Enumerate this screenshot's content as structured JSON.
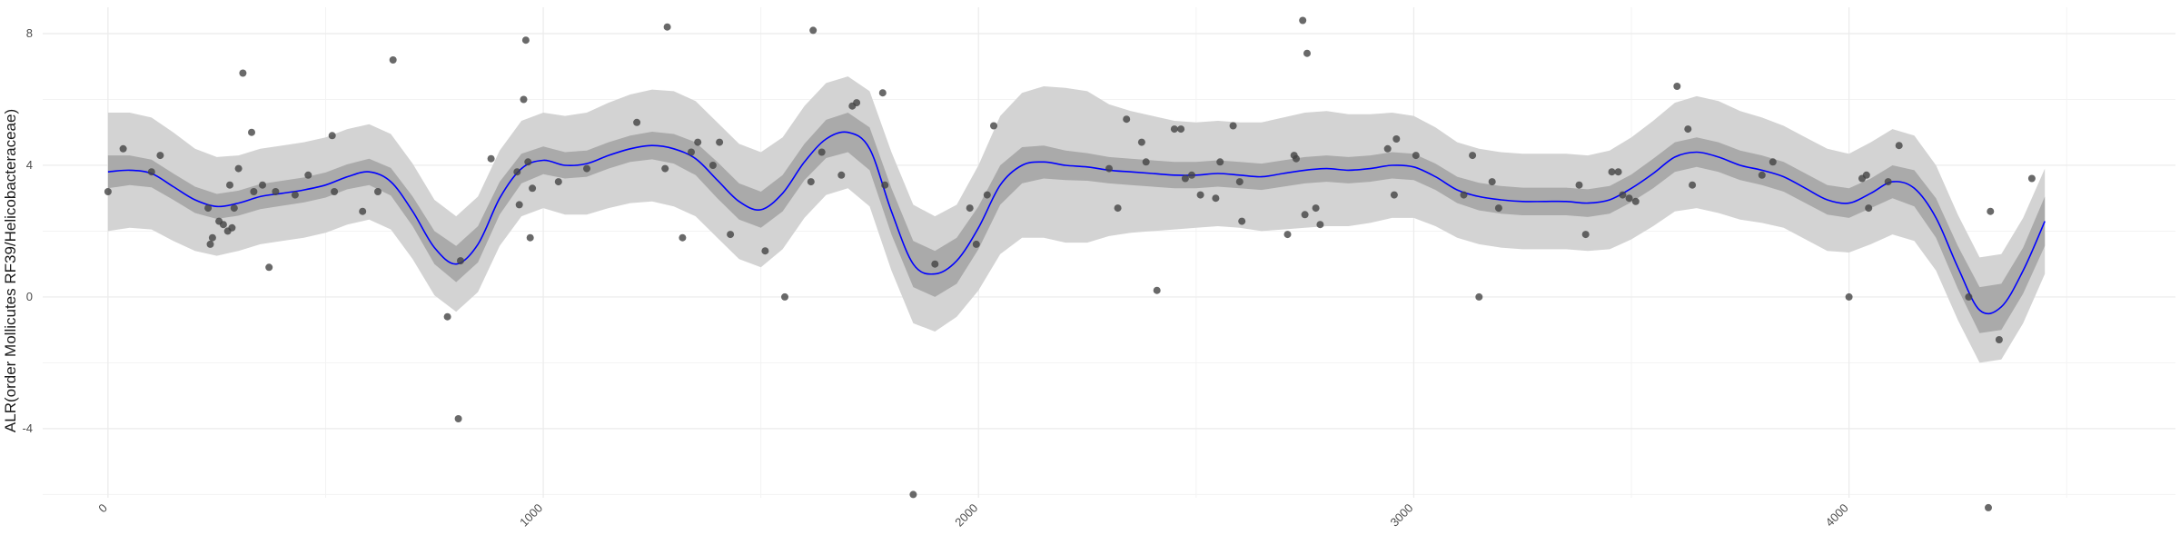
{
  "chart_data": {
    "type": "scatter",
    "title": "",
    "xlabel": "",
    "ylabel": "ALR(order Mollicutes RF39/Helicobacteraceae)",
    "xlim": [
      -150,
      4750
    ],
    "ylim": [
      -6.1,
      8.8
    ],
    "xticks": [
      0,
      1000,
      2000,
      3000,
      4000
    ],
    "xtick_labels": [
      "0",
      "1000",
      "2000",
      "3000",
      "4000"
    ],
    "yticks": [
      -4,
      0,
      4,
      8
    ],
    "ytick_labels": [
      "-4",
      "0",
      "4",
      "8"
    ],
    "grid": true,
    "colors": {
      "points": "#444444",
      "smooth_line": "#0000ff",
      "outer_band": "#d3d3d3",
      "inner_band": "#aaaaaa",
      "grid": "#ebebeb"
    },
    "points": [
      [
        0,
        3.2
      ],
      [
        35,
        4.5
      ],
      [
        100,
        3.8
      ],
      [
        120,
        4.3
      ],
      [
        230,
        2.7
      ],
      [
        235,
        1.6
      ],
      [
        240,
        1.8
      ],
      [
        255,
        2.3
      ],
      [
        265,
        2.2
      ],
      [
        275,
        2.0
      ],
      [
        280,
        3.4
      ],
      [
        285,
        2.1
      ],
      [
        290,
        2.7
      ],
      [
        300,
        3.9
      ],
      [
        310,
        6.8
      ],
      [
        335,
        3.2
      ],
      [
        330,
        5.0
      ],
      [
        355,
        3.4
      ],
      [
        370,
        0.9
      ],
      [
        385,
        3.2
      ],
      [
        430,
        3.1
      ],
      [
        460,
        3.7
      ],
      [
        515,
        4.9
      ],
      [
        520,
        3.2
      ],
      [
        585,
        2.6
      ],
      [
        620,
        3.2
      ],
      [
        655,
        7.2
      ],
      [
        780,
        -0.6
      ],
      [
        805,
        -3.7
      ],
      [
        810,
        1.1
      ],
      [
        880,
        4.2
      ],
      [
        940,
        3.8
      ],
      [
        945,
        2.8
      ],
      [
        955,
        6.0
      ],
      [
        960,
        7.8
      ],
      [
        965,
        4.1
      ],
      [
        970,
        1.8
      ],
      [
        975,
        3.3
      ],
      [
        1035,
        3.5
      ],
      [
        1100,
        3.9
      ],
      [
        1215,
        5.3
      ],
      [
        1280,
        3.9
      ],
      [
        1285,
        8.2
      ],
      [
        1320,
        1.8
      ],
      [
        1340,
        4.4
      ],
      [
        1355,
        4.7
      ],
      [
        1390,
        4.0
      ],
      [
        1405,
        4.7
      ],
      [
        1430,
        1.9
      ],
      [
        1510,
        1.4
      ],
      [
        1555,
        0.0
      ],
      [
        1615,
        3.5
      ],
      [
        1620,
        8.1
      ],
      [
        1640,
        4.4
      ],
      [
        1685,
        3.7
      ],
      [
        1710,
        5.8
      ],
      [
        1720,
        5.9
      ],
      [
        1780,
        6.2
      ],
      [
        1785,
        3.4
      ],
      [
        1850,
        -6.0
      ],
      [
        1900,
        1.0
      ],
      [
        1980,
        2.7
      ],
      [
        1995,
        1.6
      ],
      [
        2020,
        3.1
      ],
      [
        2035,
        5.2
      ],
      [
        2300,
        3.9
      ],
      [
        2320,
        2.7
      ],
      [
        2340,
        5.4
      ],
      [
        2375,
        4.7
      ],
      [
        2385,
        4.1
      ],
      [
        2410,
        0.2
      ],
      [
        2450,
        5.1
      ],
      [
        2465,
        5.1
      ],
      [
        2475,
        3.6
      ],
      [
        2490,
        3.7
      ],
      [
        2510,
        3.1
      ],
      [
        2545,
        3.0
      ],
      [
        2555,
        4.1
      ],
      [
        2585,
        5.2
      ],
      [
        2600,
        3.5
      ],
      [
        2605,
        2.3
      ],
      [
        2710,
        1.9
      ],
      [
        2725,
        4.3
      ],
      [
        2730,
        4.2
      ],
      [
        2745,
        8.4
      ],
      [
        2750,
        2.5
      ],
      [
        2755,
        7.4
      ],
      [
        2775,
        2.7
      ],
      [
        2785,
        2.2
      ],
      [
        2940,
        4.5
      ],
      [
        2955,
        3.1
      ],
      [
        2960,
        4.8
      ],
      [
        3005,
        4.3
      ],
      [
        3115,
        3.1
      ],
      [
        3135,
        4.3
      ],
      [
        3150,
        0.0
      ],
      [
        3180,
        3.5
      ],
      [
        3195,
        2.7
      ],
      [
        3380,
        3.4
      ],
      [
        3395,
        1.9
      ],
      [
        3455,
        3.8
      ],
      [
        3470,
        3.8
      ],
      [
        3480,
        3.1
      ],
      [
        3495,
        3.0
      ],
      [
        3510,
        2.9
      ],
      [
        3605,
        6.4
      ],
      [
        3630,
        5.1
      ],
      [
        3640,
        3.4
      ],
      [
        3800,
        3.7
      ],
      [
        3825,
        4.1
      ],
      [
        4000,
        0.0
      ],
      [
        4030,
        3.6
      ],
      [
        4040,
        3.7
      ],
      [
        4045,
        2.7
      ],
      [
        4090,
        3.5
      ],
      [
        4115,
        4.6
      ],
      [
        4275,
        0.0
      ],
      [
        4320,
        -6.4
      ],
      [
        4325,
        2.6
      ],
      [
        4345,
        -1.3
      ],
      [
        4420,
        3.6
      ]
    ],
    "smooth": {
      "x": [
        0,
        50,
        100,
        150,
        200,
        250,
        300,
        350,
        400,
        450,
        500,
        550,
        600,
        650,
        700,
        750,
        800,
        850,
        900,
        950,
        1000,
        1050,
        1100,
        1150,
        1200,
        1250,
        1300,
        1350,
        1400,
        1450,
        1500,
        1550,
        1600,
        1650,
        1700,
        1750,
        1800,
        1850,
        1900,
        1950,
        2000,
        2050,
        2100,
        2150,
        2200,
        2250,
        2300,
        2350,
        2400,
        2450,
        2500,
        2550,
        2600,
        2650,
        2700,
        2750,
        2800,
        2850,
        2900,
        2950,
        3000,
        3050,
        3100,
        3150,
        3200,
        3250,
        3300,
        3350,
        3400,
        3450,
        3500,
        3550,
        3600,
        3650,
        3700,
        3750,
        3800,
        3850,
        3900,
        3950,
        4000,
        4050,
        4100,
        4150,
        4200,
        4250,
        4300,
        4350,
        4400,
        4450
      ],
      "y": [
        3.8,
        3.85,
        3.75,
        3.35,
        2.95,
        2.75,
        2.85,
        3.05,
        3.15,
        3.25,
        3.4,
        3.65,
        3.8,
        3.5,
        2.6,
        1.5,
        1.0,
        1.6,
        3.0,
        3.9,
        4.15,
        4.0,
        4.05,
        4.3,
        4.5,
        4.6,
        4.5,
        4.2,
        3.55,
        2.9,
        2.65,
        3.15,
        4.1,
        4.8,
        5.0,
        4.5,
        2.6,
        1.0,
        0.7,
        1.1,
        2.1,
        3.4,
        4.0,
        4.1,
        4.0,
        3.95,
        3.85,
        3.8,
        3.75,
        3.7,
        3.7,
        3.75,
        3.7,
        3.65,
        3.75,
        3.85,
        3.9,
        3.85,
        3.9,
        4.0,
        3.95,
        3.65,
        3.25,
        3.05,
        2.95,
        2.9,
        2.9,
        2.9,
        2.85,
        2.95,
        3.3,
        3.75,
        4.25,
        4.4,
        4.25,
        4.0,
        3.85,
        3.65,
        3.3,
        2.95,
        2.85,
        3.15,
        3.5,
        3.3,
        2.4,
        0.9,
        -0.4,
        -0.3,
        0.8,
        2.3
      ],
      "inner_half_width": [
        0.5,
        0.45,
        0.42,
        0.4,
        0.4,
        0.38,
        0.38,
        0.38,
        0.38,
        0.38,
        0.38,
        0.38,
        0.4,
        0.42,
        0.45,
        0.5,
        0.55,
        0.55,
        0.5,
        0.45,
        0.42,
        0.4,
        0.4,
        0.4,
        0.4,
        0.42,
        0.45,
        0.5,
        0.55,
        0.55,
        0.55,
        0.55,
        0.55,
        0.58,
        0.6,
        0.65,
        0.7,
        0.7,
        0.7,
        0.7,
        0.65,
        0.6,
        0.55,
        0.5,
        0.45,
        0.42,
        0.4,
        0.4,
        0.4,
        0.4,
        0.4,
        0.4,
        0.4,
        0.4,
        0.4,
        0.4,
        0.4,
        0.4,
        0.4,
        0.4,
        0.4,
        0.4,
        0.4,
        0.42,
        0.42,
        0.42,
        0.42,
        0.42,
        0.42,
        0.42,
        0.42,
        0.45,
        0.45,
        0.45,
        0.45,
        0.45,
        0.45,
        0.45,
        0.45,
        0.45,
        0.45,
        0.45,
        0.5,
        0.55,
        0.6,
        0.65,
        0.7,
        0.7,
        0.7,
        0.75
      ],
      "outer_half_width": [
        1.8,
        1.75,
        1.7,
        1.65,
        1.55,
        1.5,
        1.45,
        1.45,
        1.45,
        1.45,
        1.45,
        1.45,
        1.45,
        1.45,
        1.45,
        1.45,
        1.45,
        1.45,
        1.45,
        1.45,
        1.45,
        1.5,
        1.55,
        1.6,
        1.65,
        1.7,
        1.75,
        1.75,
        1.75,
        1.75,
        1.75,
        1.7,
        1.7,
        1.7,
        1.7,
        1.75,
        1.8,
        1.8,
        1.75,
        1.7,
        1.9,
        2.1,
        2.2,
        2.3,
        2.35,
        2.3,
        2.0,
        1.85,
        1.75,
        1.65,
        1.6,
        1.6,
        1.6,
        1.65,
        1.7,
        1.75,
        1.75,
        1.7,
        1.65,
        1.6,
        1.55,
        1.5,
        1.45,
        1.45,
        1.45,
        1.45,
        1.45,
        1.45,
        1.45,
        1.5,
        1.55,
        1.6,
        1.65,
        1.7,
        1.7,
        1.65,
        1.6,
        1.55,
        1.55,
        1.55,
        1.5,
        1.55,
        1.6,
        1.6,
        1.6,
        1.6,
        1.6,
        1.6,
        1.6,
        1.6
      ]
    }
  }
}
